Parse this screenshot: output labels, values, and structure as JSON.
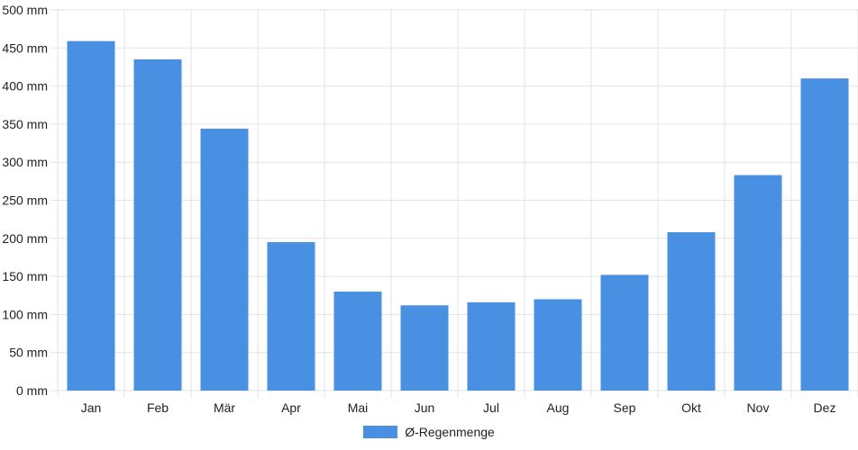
{
  "chart_data": {
    "type": "bar",
    "categories": [
      "Jan",
      "Feb",
      "Mär",
      "Apr",
      "Mai",
      "Jun",
      "Jul",
      "Aug",
      "Sep",
      "Okt",
      "Nov",
      "Dez"
    ],
    "series": [
      {
        "name": "Ø-Regenmenge",
        "values": [
          459,
          435,
          344,
          195,
          130,
          112,
          116,
          120,
          152,
          208,
          283,
          410
        ]
      }
    ],
    "y_ticks": [
      "0 mm",
      "50 mm",
      "100 mm",
      "150 mm",
      "200 mm",
      "250 mm",
      "300 mm",
      "350 mm",
      "400 mm",
      "450 mm",
      "500 mm"
    ],
    "ylim": [
      0,
      500
    ],
    "y_unit": "mm",
    "grid": true,
    "legend_position": "bottom",
    "bar_color": "#4a90e2",
    "grid_color": "#e3e3e3"
  }
}
